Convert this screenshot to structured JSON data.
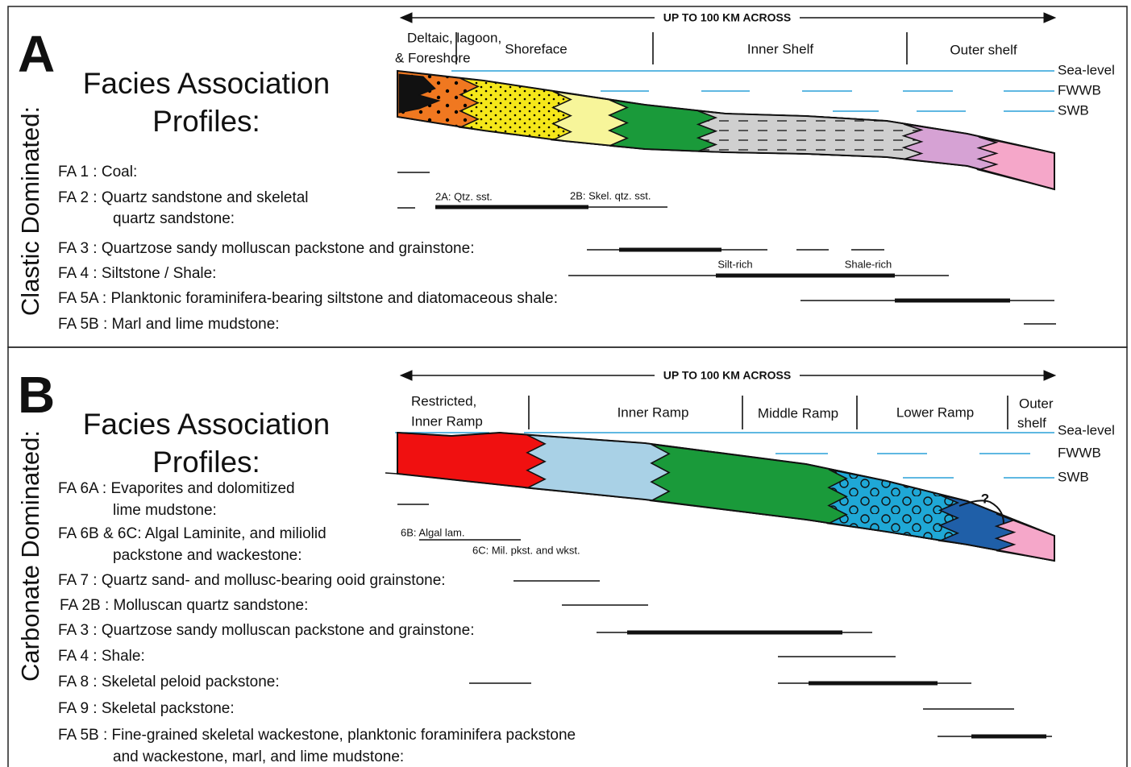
{
  "panels": [
    {
      "letter": "A",
      "side_label": "Clastic Dominated:",
      "title": [
        "Facies Association",
        "Profiles:"
      ],
      "scale_label": "UP TO 100 KM ACROSS",
      "zones": [
        [
          "Deltaic, lagoon,",
          "& Foreshore"
        ],
        [
          "Shoreface"
        ],
        [
          "Inner Shelf"
        ],
        [
          "Outer shelf"
        ]
      ],
      "levels": [
        "Sea-level",
        "FWWB",
        "SWB"
      ],
      "facies": [
        [
          "FA 1 : Coal:"
        ],
        [
          "FA 2 : Quartz sandstone and skeletal",
          "quartz sandstone:"
        ],
        [
          "FA 3 : Quartzose sandy molluscan packstone and grainstone:"
        ],
        [
          "FA 4 : Siltstone / Shale:"
        ],
        [
          "FA 5A : Planktonic foraminifera-bearing siltstone and diatomaceous shale:"
        ],
        [
          "FA 5B : Marl and lime mudstone:"
        ]
      ],
      "range_labels": [
        "2A: Qtz. sst.",
        "2B: Skel. qtz. sst.",
        "Silt-rich",
        "Shale-rich"
      ]
    },
    {
      "letter": "B",
      "side_label": "Carbonate Dominated:",
      "title": [
        "Facies Association",
        "Profiles:"
      ],
      "scale_label": "UP TO 100 KM ACROSS",
      "zones": [
        [
          "Restricted,",
          "Inner Ramp"
        ],
        [
          "Inner Ramp"
        ],
        [
          "Middle Ramp"
        ],
        [
          "Lower Ramp"
        ],
        [
          "Outer",
          "shelf"
        ]
      ],
      "levels": [
        "Sea-level",
        "FWWB",
        "SWB"
      ],
      "facies": [
        [
          "FA 6A : Evaporites and dolomitized",
          "lime mudstone:"
        ],
        [
          "FA 6B & 6C: Algal Laminite, and miliolid",
          "packstone and wackestone:"
        ],
        [
          "FA 7 : Quartz sand- and mollusc-bearing ooid grainstone:"
        ],
        [
          "FA 2B : Molluscan quartz sandstone:"
        ],
        [
          "FA 3 : Quartzose sandy molluscan packstone and grainstone:"
        ],
        [
          "FA 4 : Shale:"
        ],
        [
          "FA 8 : Skeletal peloid packstone:"
        ],
        [
          "FA 9 : Skeletal packstone:"
        ],
        [
          "FA 5B : Fine-grained skeletal wackestone, planktonic foraminifera packstone",
          "and wackestone, marl, and lime mudstone:"
        ]
      ],
      "range_labels": [
        "6B: Algal lam.",
        "6C: Mil. pkst. and wkst."
      ],
      "query": "?"
    }
  ]
}
